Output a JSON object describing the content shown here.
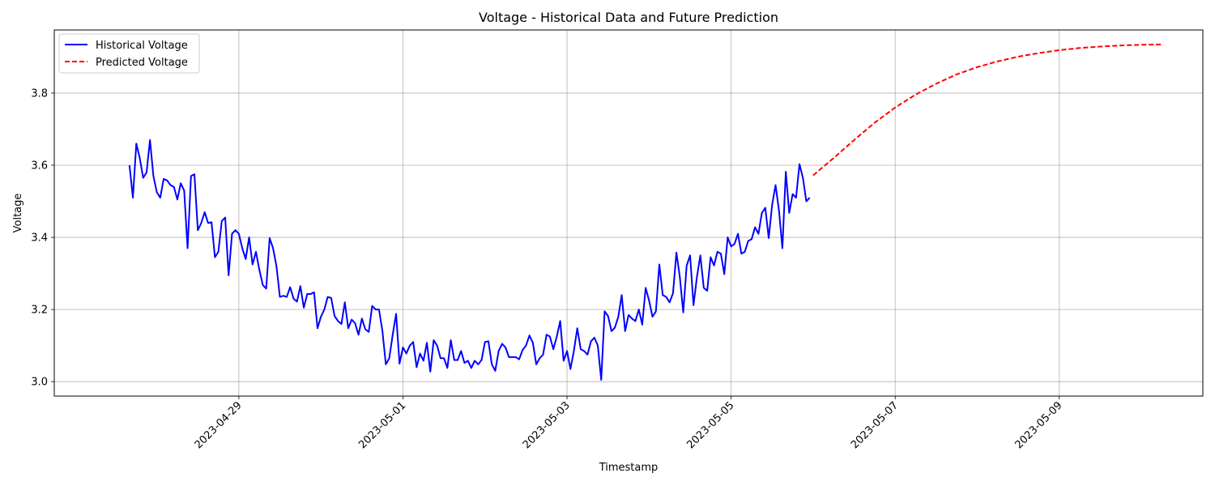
{
  "chart_data": {
    "type": "line",
    "title": "Voltage - Historical Data and Future Prediction",
    "xlabel": "Timestamp",
    "ylabel": "Voltage",
    "grid": true,
    "legend_position": "top-left",
    "xlim": [
      "2023-04-26T18:00",
      "2023-05-10T18:00"
    ],
    "ylim": [
      2.96,
      3.975
    ],
    "x_ticks": [
      "2023-04-29",
      "2023-05-01",
      "2023-05-03",
      "2023-05-05",
      "2023-05-07",
      "2023-05-09"
    ],
    "y_ticks": [
      "3.0",
      "3.2",
      "3.4",
      "3.6",
      "3.8"
    ],
    "series": [
      {
        "name": "Historical Voltage",
        "color": "#0000ff",
        "style": "solid",
        "x_start": "2023-04-27T16:00",
        "x_step_hours": 1,
        "values": [
          3.6,
          3.51,
          3.66,
          3.62,
          3.565,
          3.58,
          3.67,
          3.57,
          3.525,
          3.51,
          3.562,
          3.558,
          3.545,
          3.54,
          3.505,
          3.55,
          3.53,
          3.37,
          3.57,
          3.575,
          3.42,
          3.44,
          3.47,
          3.44,
          3.442,
          3.345,
          3.36,
          3.445,
          3.455,
          3.295,
          3.41,
          3.42,
          3.41,
          3.37,
          3.34,
          3.4,
          3.325,
          3.36,
          3.31,
          3.268,
          3.258,
          3.398,
          3.37,
          3.32,
          3.235,
          3.238,
          3.235,
          3.262,
          3.23,
          3.222,
          3.265,
          3.205,
          3.243,
          3.243,
          3.248,
          3.148,
          3.18,
          3.2,
          3.235,
          3.232,
          3.182,
          3.168,
          3.16,
          3.22,
          3.148,
          3.172,
          3.162,
          3.13,
          3.175,
          3.145,
          3.138,
          3.21,
          3.2,
          3.2,
          3.14,
          3.048,
          3.065,
          3.13,
          3.188,
          3.05,
          3.095,
          3.078,
          3.1,
          3.11,
          3.04,
          3.078,
          3.058,
          3.108,
          3.028,
          3.115,
          3.1,
          3.065,
          3.065,
          3.038,
          3.115,
          3.06,
          3.06,
          3.085,
          3.052,
          3.058,
          3.038,
          3.058,
          3.048,
          3.06,
          3.11,
          3.112,
          3.048,
          3.03,
          3.085,
          3.105,
          3.095,
          3.068,
          3.068,
          3.068,
          3.062,
          3.088,
          3.1,
          3.128,
          3.108,
          3.048,
          3.065,
          3.075,
          3.13,
          3.125,
          3.09,
          3.125,
          3.168,
          3.058,
          3.085,
          3.035,
          3.085,
          3.148,
          3.09,
          3.085,
          3.075,
          3.112,
          3.122,
          3.1,
          3.005,
          3.195,
          3.182,
          3.14,
          3.15,
          3.18,
          3.24,
          3.14,
          3.185,
          3.175,
          3.168,
          3.2,
          3.158,
          3.26,
          3.225,
          3.18,
          3.195,
          3.325,
          3.24,
          3.235,
          3.22,
          3.245,
          3.358,
          3.29,
          3.192,
          3.322,
          3.35,
          3.212,
          3.29,
          3.35,
          3.26,
          3.252,
          3.345,
          3.322,
          3.36,
          3.355,
          3.298,
          3.4,
          3.375,
          3.382,
          3.41,
          3.355,
          3.36,
          3.39,
          3.395,
          3.428,
          3.41,
          3.468,
          3.482,
          3.398,
          3.49,
          3.545,
          3.475,
          3.37,
          3.582,
          3.468,
          3.52,
          3.51,
          3.603,
          3.565,
          3.5,
          3.51
        ]
      },
      {
        "name": "Predicted Voltage",
        "color": "#ff0000",
        "style": "dashed",
        "points": [
          [
            "2023-05-06T00:00",
            3.572
          ],
          [
            "2023-05-06T06:00",
            3.62
          ],
          [
            "2023-05-06T12:00",
            3.67
          ],
          [
            "2023-05-06T18:00",
            3.718
          ],
          [
            "2023-05-07T00:00",
            3.76
          ],
          [
            "2023-05-07T06:00",
            3.796
          ],
          [
            "2023-05-07T12:00",
            3.826
          ],
          [
            "2023-05-07T18:00",
            3.852
          ],
          [
            "2023-05-08T00:00",
            3.872
          ],
          [
            "2023-05-08T06:00",
            3.888
          ],
          [
            "2023-05-08T12:00",
            3.901
          ],
          [
            "2023-05-08T18:00",
            3.911
          ],
          [
            "2023-05-09T00:00",
            3.919
          ],
          [
            "2023-05-09T06:00",
            3.925
          ],
          [
            "2023-05-09T12:00",
            3.929
          ],
          [
            "2023-05-09T18:00",
            3.932
          ],
          [
            "2023-05-10T00:00",
            3.934
          ],
          [
            "2023-05-10T06:00",
            3.935
          ]
        ]
      }
    ]
  }
}
